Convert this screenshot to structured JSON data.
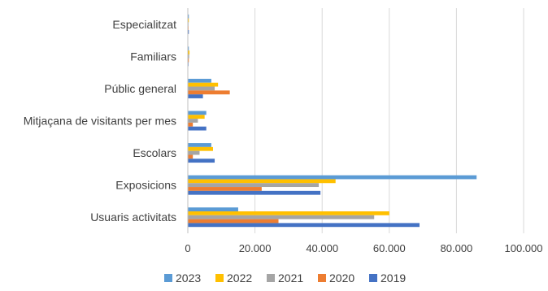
{
  "chart_data": {
    "type": "bar",
    "orientation": "horizontal",
    "categories": [
      "Especialitzat",
      "Familiars",
      "Públic general",
      "Mitjaçana de visitants per mes",
      "Escolars",
      "Exposicions",
      "Usuaris activitats"
    ],
    "series": [
      {
        "name": "2023",
        "color": "#5b9bd5",
        "values": [
          300,
          300,
          7000,
          5500,
          7000,
          86000,
          15000
        ]
      },
      {
        "name": "2022",
        "color": "#ffc000",
        "values": [
          300,
          500,
          9000,
          5000,
          7500,
          44000,
          60000
        ]
      },
      {
        "name": "2021",
        "color": "#a5a5a5",
        "values": [
          200,
          400,
          8000,
          3000,
          3500,
          39000,
          55500
        ]
      },
      {
        "name": "2020",
        "color": "#ed7d31",
        "values": [
          200,
          300,
          12500,
          1500,
          1500,
          22000,
          27000
        ]
      },
      {
        "name": "2019",
        "color": "#4472c4",
        "values": [
          300,
          200,
          4500,
          5500,
          8000,
          39500,
          69000
        ]
      }
    ],
    "xlim": [
      0,
      100000
    ],
    "xticks": [
      0,
      20000,
      40000,
      60000,
      80000,
      100000
    ],
    "xtick_labels": [
      "0",
      "20.000",
      "40.000",
      "60.000",
      "80.000",
      "100.000"
    ],
    "grid": true,
    "legend_position": "bottom"
  }
}
